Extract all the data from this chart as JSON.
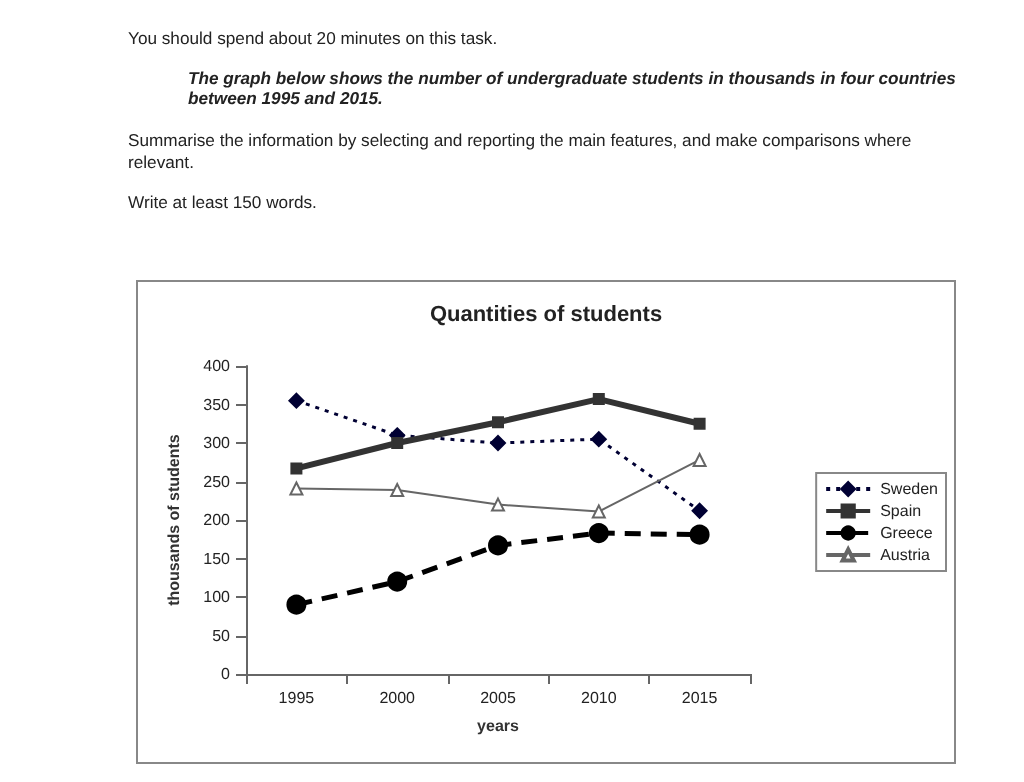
{
  "chart_data": {
    "type": "line",
    "title": "Quantities of students",
    "annotations": [
      "You should spend about 20 minutes on this task.",
      "The graph below shows the number of undergraduate students in thousands in four countries between 1995 and 2015.",
      "Summarise the information by selecting and reporting the main features, and make comparisons where relevant.",
      "Write at least 150 words."
    ],
    "xlabel": "years",
    "ylabel": "thousands of students",
    "categories": [
      "1995",
      "2000",
      "2005",
      "2010",
      "2015"
    ],
    "series": [
      {
        "name": "Sweden",
        "color": "#000033",
        "values": [
          355,
          310,
          300,
          305,
          212
        ],
        "marker": "diamond",
        "line_style": "dotted"
      },
      {
        "name": "Spain",
        "color": "#333333",
        "values": [
          267,
          300,
          327,
          357,
          325
        ],
        "marker": "square",
        "line_style": "solid"
      },
      {
        "name": "Greece",
        "color": "#000000",
        "values": [
          90,
          120,
          167,
          183,
          181
        ],
        "marker": "circle",
        "line_style": "dashed"
      },
      {
        "name": "Austria",
        "color": "#666666",
        "values": [
          241,
          239,
          220,
          211,
          278
        ],
        "marker": "triangle",
        "line_style": "solid"
      }
    ],
    "ylim": [
      0,
      400
    ],
    "yticks": [
      0,
      50,
      100,
      150,
      200,
      250,
      300,
      350,
      400
    ],
    "grid": false,
    "legend": "right"
  }
}
